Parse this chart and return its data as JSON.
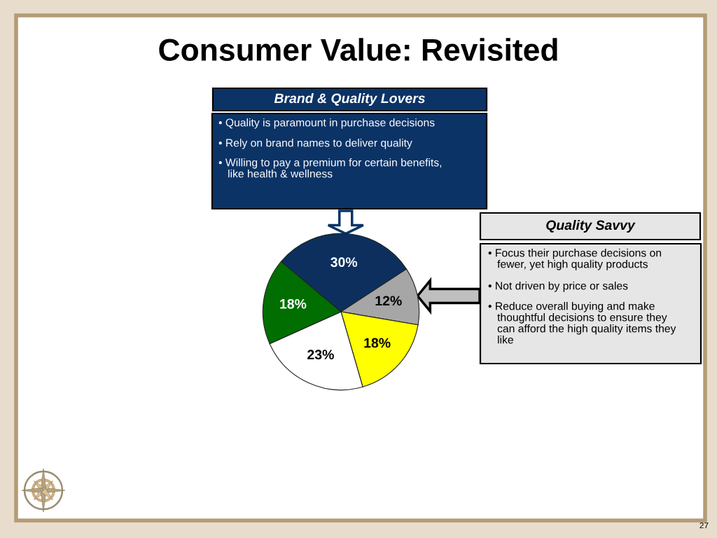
{
  "chart_data": {
    "type": "pie",
    "title": "Consumer Value: Revisited",
    "categories": [
      null,
      null,
      null,
      null,
      null
    ],
    "values": [
      30,
      12,
      18,
      23,
      18
    ],
    "colors": [
      "#0c2f5e",
      "#a6a6a6",
      "#ffff00",
      "#ffffff",
      "#006e00"
    ],
    "value_labels": [
      "30%",
      "12%",
      "18%",
      "23%",
      "18%"
    ],
    "annotations": [
      "Brand & Quality Lovers",
      "• Quality is paramount in purchase decisions",
      "• Rely on brand names to deliver quality",
      "• Willing to pay a premium for certain benefits,\nlike health & wellness",
      "Quality Savvy",
      "• Focus their purchase decisions on\nfewer, yet high quality products",
      "• Not driven by price or sales",
      "• Reduce overall buying and make\nthoughtful decisions to ensure they\ncan afford the high quality items they\nlike",
      "27"
    ]
  }
}
